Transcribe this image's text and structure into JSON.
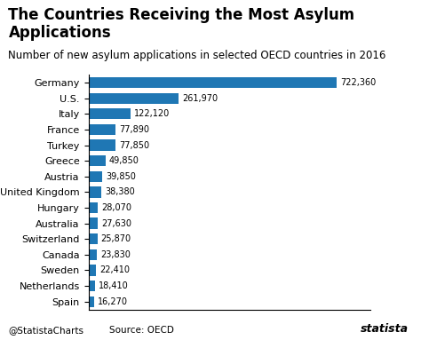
{
  "chart_data": {
    "type": "bar",
    "orientation": "horizontal",
    "title": "The Countries Receiving the Most Asylum Applications",
    "subtitle": "Number of new asylum applications in selected OECD countries in 2016",
    "categories": [
      "Germany",
      "U.S.",
      "Italy",
      "France",
      "Turkey",
      "Greece",
      "Austria",
      "United Kingdom",
      "Hungary",
      "Australia",
      "Switzerland",
      "Canada",
      "Sweden",
      "Netherlands",
      "Spain"
    ],
    "values": [
      722360,
      261970,
      122120,
      77890,
      77850,
      49850,
      39850,
      38380,
      28070,
      27630,
      25870,
      23830,
      22410,
      18410,
      16270
    ],
    "value_labels": [
      "722,360",
      "261,970",
      "122,120",
      "77,890",
      "77,850",
      "49,850",
      "39,850",
      "38,380",
      "28,070",
      "27,630",
      "25,870",
      "23,830",
      "22,410",
      "18,410",
      "16,270"
    ],
    "data_labels": true,
    "xlim": [
      0,
      820000
    ],
    "tick_labels": "y",
    "grid": false,
    "annotations": [
      "@StatistaCharts",
      "Source: OECD",
      "statista"
    ]
  }
}
